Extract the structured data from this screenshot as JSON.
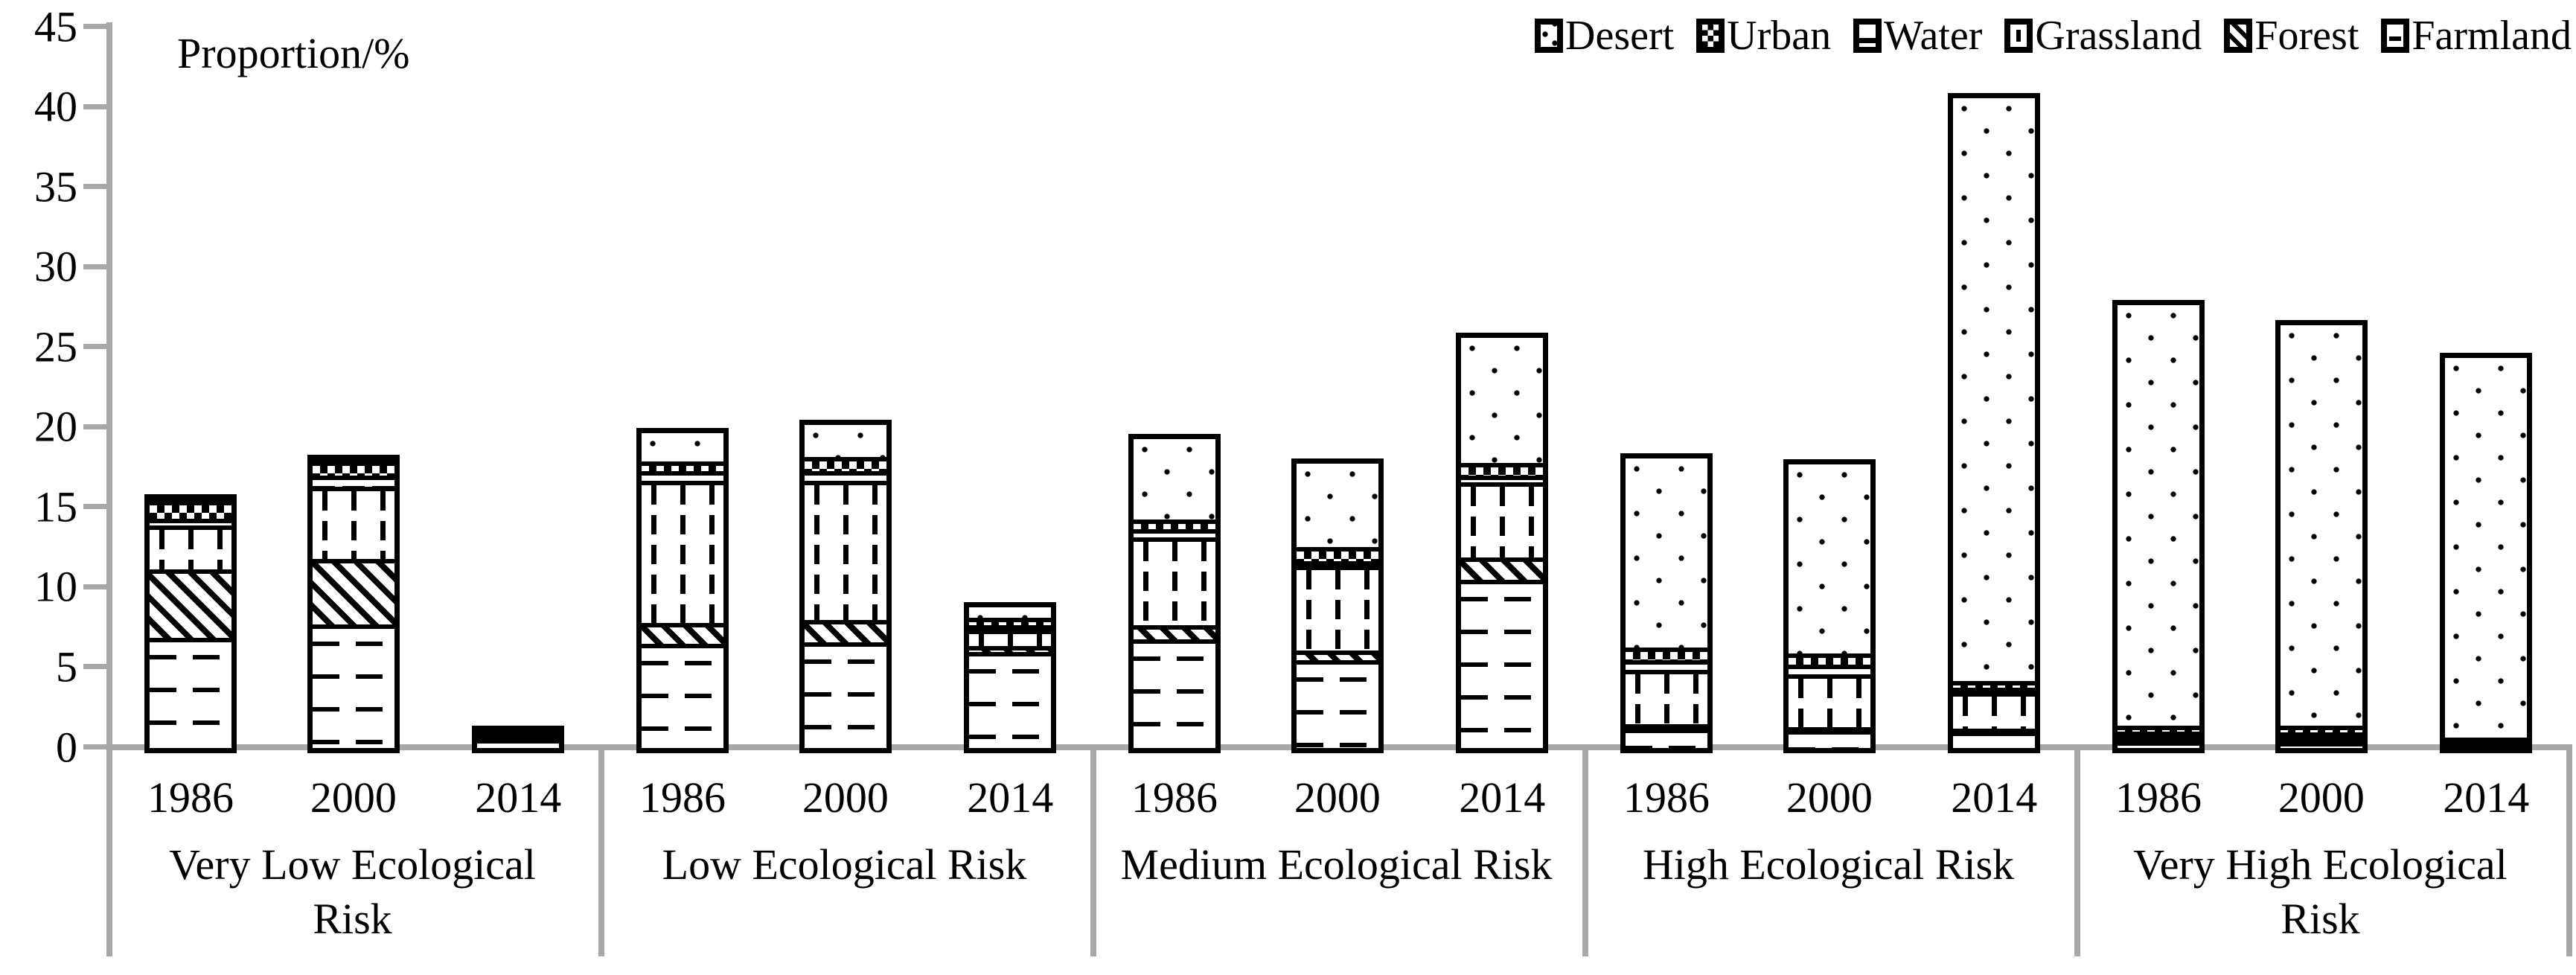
{
  "title": "Proportion/%",
  "y_axis": {
    "ticks": [
      45,
      40,
      35,
      30,
      25,
      20,
      15,
      10,
      5,
      0
    ]
  },
  "legend_order": [
    "Desert",
    "Urban",
    "Water",
    "Grassland",
    "Forest",
    "Farmland"
  ],
  "colors": {
    "axis_gray": "#a8a8a8",
    "ink": "#000000",
    "background": "#ffffff"
  },
  "chart_data": {
    "type": "bar",
    "stacked": true,
    "title": "Proportion/%",
    "xlabel": "",
    "ylabel": "Proportion/%",
    "ylim": [
      0,
      45
    ],
    "grid": false,
    "legend_position": "top-right",
    "categories": [
      "Very Low Ecological Risk",
      "Low Ecological Risk",
      "Medium Ecological Risk",
      "High Ecological Risk",
      "Very High Ecological Risk"
    ],
    "years": [
      "1986",
      "2000",
      "2014"
    ],
    "series": [
      {
        "name": "Farmland",
        "pattern": "hdash",
        "values": [
          [
            6.9,
            7.7,
            0.55
          ],
          [
            6.5,
            6.6,
            6.0
          ],
          [
            6.8,
            5.5,
            10.5
          ],
          [
            1.2,
            1.1,
            1.0
          ],
          [
            0.4,
            0.35,
            0.25
          ]
        ]
      },
      {
        "name": "Forest",
        "pattern": "diag",
        "values": [
          [
            4.3,
            4.1,
            0.05
          ],
          [
            1.3,
            1.4,
            0.35
          ],
          [
            0.9,
            0.6,
            1.4
          ],
          [
            0.3,
            0.2,
            0.2
          ],
          [
            0.05,
            0.05,
            0.05
          ]
        ]
      },
      {
        "name": "Grassland",
        "pattern": "vdash",
        "values": [
          [
            2.75,
            4.5,
            0.1
          ],
          [
            8.9,
            8.7,
            1.0
          ],
          [
            5.5,
            5.3,
            4.7
          ],
          [
            3.4,
            3.3,
            2.3
          ],
          [
            0.3,
            0.25,
            0.1
          ]
        ]
      },
      {
        "name": "Water",
        "pattern": "hlines",
        "values": [
          [
            0.4,
            0.7,
            0.1
          ],
          [
            0.6,
            0.6,
            0.3
          ],
          [
            0.5,
            0.3,
            0.4
          ],
          [
            0.6,
            0.6,
            0.3
          ],
          [
            0.25,
            0.3,
            0.1
          ]
        ]
      },
      {
        "name": "Urban",
        "pattern": "checker",
        "values": [
          [
            1.1,
            0.9,
            0.15
          ],
          [
            0.6,
            0.9,
            0.45
          ],
          [
            0.6,
            0.9,
            0.8
          ],
          [
            0.8,
            0.7,
            0.4
          ],
          [
            0.35,
            0.4,
            0.15
          ]
        ]
      },
      {
        "name": "Desert",
        "pattern": "dots",
        "values": [
          [
            0.1,
            0.1,
            0.05
          ],
          [
            1.75,
            2.0,
            0.65
          ],
          [
            5.0,
            5.2,
            7.8
          ],
          [
            11.8,
            11.8,
            36.4
          ],
          [
            26.25,
            25.0,
            23.7
          ]
        ]
      }
    ],
    "totals": [
      [
        15.55,
        18.0,
        1.0
      ],
      [
        19.65,
        20.2,
        8.75
      ],
      [
        19.3,
        17.8,
        25.6
      ],
      [
        18.1,
        17.7,
        40.6
      ],
      [
        27.6,
        26.35,
        24.35
      ]
    ]
  }
}
